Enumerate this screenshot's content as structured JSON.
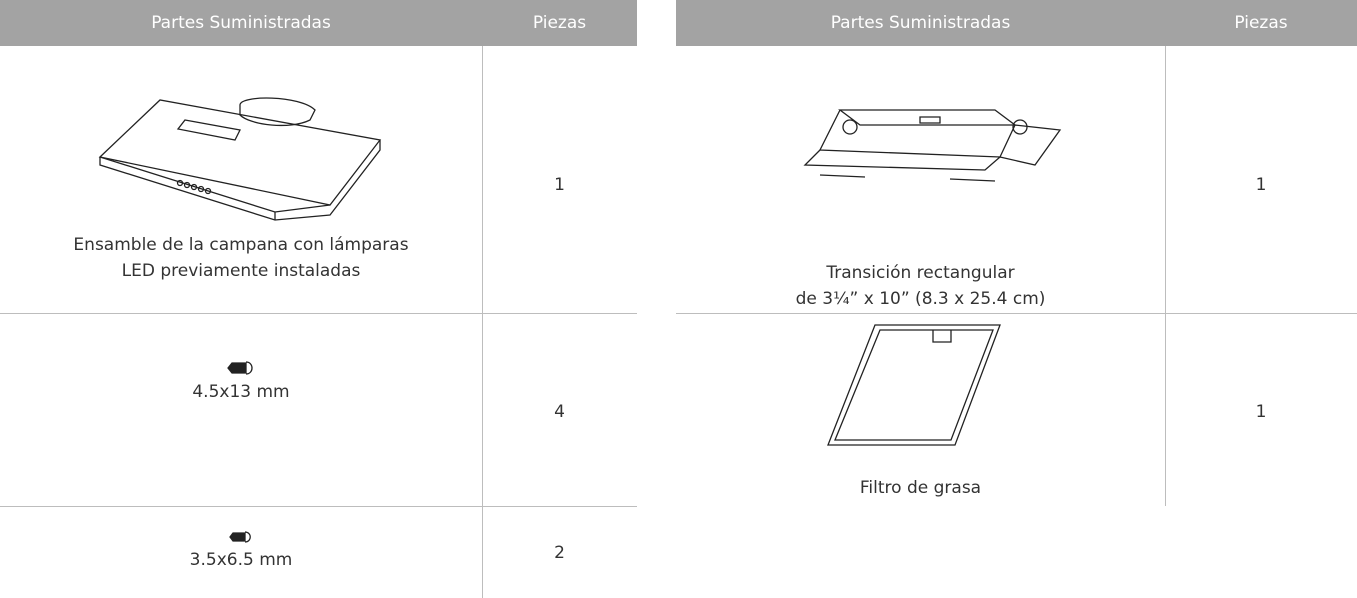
{
  "tables": [
    {
      "header": [
        "Partes Suministradas",
        "Piezas"
      ],
      "rows": [
        {
          "label": [
            "Ensamble de la campana con lámparas",
            "LED previamente instaladas"
          ],
          "qty": 1
        },
        {
          "label": [
            "4.5x13 mm"
          ],
          "qty": 4
        },
        {
          "label": [
            "3.5x6.5 mm"
          ],
          "qty": 2
        }
      ]
    },
    {
      "header": [
        "Partes Suministradas",
        "Piezas"
      ],
      "rows": [
        {
          "label": [
            "Transición rectangular",
            "de 3¼” x 10” (8.3 x 25.4 cm)"
          ],
          "qty": 1
        },
        {
          "label": [
            "Filtro de grasa"
          ],
          "qty": 1
        }
      ]
    }
  ]
}
